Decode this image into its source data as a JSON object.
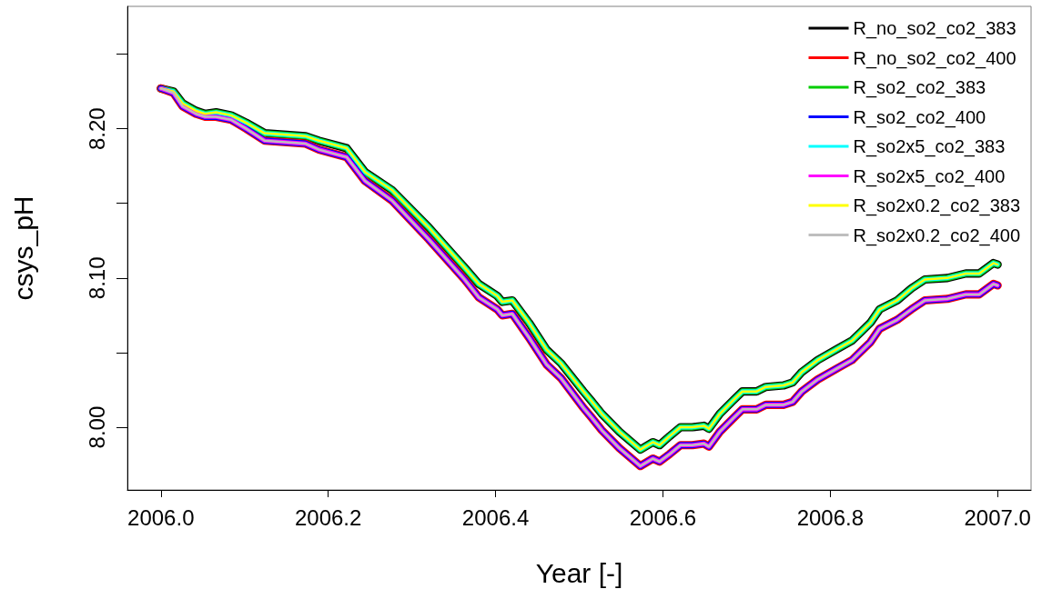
{
  "chart_data": {
    "type": "line",
    "xlabel": "Year [-]",
    "ylabel": "csys_pH",
    "xlim": [
      2005.96,
      2007.04
    ],
    "xticks": [
      {
        "value": 2006,
        "label": "2006.0"
      },
      {
        "value": 2006.2,
        "label": "2006.2"
      },
      {
        "value": 2006.4,
        "label": "2006.4"
      },
      {
        "value": 2006.6,
        "label": "2006.6"
      },
      {
        "value": 2006.8,
        "label": "2006.8"
      },
      {
        "value": 2007,
        "label": "2007.0"
      }
    ],
    "ylim": [
      7.958,
      8.282
    ],
    "yticks": [
      {
        "value": 8,
        "label": "8.00"
      },
      {
        "value": 8.05,
        "label": null
      },
      {
        "value": 8.1,
        "label": "8.10"
      },
      {
        "value": 8.15,
        "label": null
      },
      {
        "value": 8.2,
        "label": "8.20"
      },
      {
        "value": 8.25,
        "label": null
      }
    ],
    "grid": false,
    "legend": "top right",
    "marker": "none",
    "line_style": "solid",
    "x": [
      2006.0,
      2006.015,
      2006.026,
      2006.042,
      2006.053,
      2006.066,
      2006.084,
      2006.102,
      2006.124,
      2006.173,
      2006.189,
      2006.222,
      2006.244,
      2006.276,
      2006.32,
      2006.363,
      2006.38,
      2006.402,
      2006.408,
      2006.42,
      2006.44,
      2006.461,
      2006.478,
      2006.505,
      2006.514,
      2006.527,
      2006.548,
      2006.573,
      2006.588,
      2006.596,
      2006.608,
      2006.621,
      2006.635,
      2006.649,
      2006.655,
      2006.668,
      2006.684,
      2006.695,
      2006.712,
      2006.723,
      2006.744,
      2006.755,
      2006.766,
      2006.785,
      2006.81,
      2006.826,
      2006.837,
      2006.848,
      2006.859,
      2006.88,
      2006.897,
      2006.913,
      2006.94,
      2006.962,
      2006.978,
      2006.995,
      2007.0
    ],
    "series": [
      {
        "name": "R_no_so2_co2_383",
        "color": "#000000",
        "values": [
          8.227,
          8.225,
          8.217,
          8.212,
          8.21,
          8.211,
          8.209,
          8.204,
          8.197,
          8.195,
          8.192,
          8.187,
          8.171,
          8.159,
          8.134,
          8.107,
          8.096,
          8.088,
          8.084,
          8.085,
          8.07,
          8.052,
          8.043,
          8.024,
          8.018,
          8.009,
          7.997,
          7.985,
          7.99,
          7.988,
          7.994,
          8.0,
          8.0,
          8.001,
          7.999,
          8.009,
          8.018,
          8.024,
          8.024,
          8.027,
          8.028,
          8.03,
          8.037,
          8.045,
          8.053,
          8.058,
          8.064,
          8.07,
          8.079,
          8.085,
          8.093,
          8.099,
          8.1,
          8.103,
          8.103,
          8.11,
          8.109
        ]
      },
      {
        "name": "R_no_so2_co2_400",
        "color": "#ff0000",
        "values": [
          8.227,
          8.224,
          8.215,
          8.21,
          8.208,
          8.208,
          8.206,
          8.2,
          8.192,
          8.19,
          8.186,
          8.181,
          8.165,
          8.152,
          8.126,
          8.099,
          8.087,
          8.079,
          8.075,
          8.076,
          8.06,
          8.042,
          8.033,
          8.013,
          8.007,
          7.998,
          7.986,
          7.974,
          7.979,
          7.977,
          7.982,
          7.988,
          7.988,
          7.989,
          7.987,
          7.997,
          8.006,
          8.012,
          8.012,
          8.015,
          8.015,
          8.017,
          8.024,
          8.032,
          8.04,
          8.045,
          8.051,
          8.057,
          8.066,
          8.072,
          8.079,
          8.085,
          8.086,
          8.089,
          8.089,
          8.096,
          8.095
        ]
      },
      {
        "name": "R_so2_co2_383",
        "color": "#00cd00",
        "values": [
          8.227,
          8.225,
          8.217,
          8.212,
          8.21,
          8.211,
          8.209,
          8.204,
          8.197,
          8.195,
          8.192,
          8.187,
          8.171,
          8.159,
          8.134,
          8.107,
          8.096,
          8.088,
          8.084,
          8.085,
          8.07,
          8.052,
          8.043,
          8.024,
          8.018,
          8.009,
          7.997,
          7.985,
          7.99,
          7.988,
          7.994,
          8.0,
          8.0,
          8.001,
          7.999,
          8.009,
          8.018,
          8.024,
          8.024,
          8.027,
          8.028,
          8.03,
          8.037,
          8.045,
          8.053,
          8.058,
          8.064,
          8.07,
          8.079,
          8.085,
          8.093,
          8.099,
          8.1,
          8.103,
          8.103,
          8.11,
          8.109
        ]
      },
      {
        "name": "R_so2_co2_400",
        "color": "#0000ff",
        "values": [
          8.227,
          8.224,
          8.215,
          8.21,
          8.208,
          8.208,
          8.206,
          8.2,
          8.192,
          8.19,
          8.186,
          8.181,
          8.165,
          8.152,
          8.126,
          8.099,
          8.087,
          8.079,
          8.075,
          8.076,
          8.06,
          8.042,
          8.033,
          8.013,
          8.007,
          7.998,
          7.986,
          7.974,
          7.979,
          7.977,
          7.982,
          7.988,
          7.988,
          7.989,
          7.987,
          7.997,
          8.006,
          8.012,
          8.012,
          8.015,
          8.015,
          8.017,
          8.024,
          8.032,
          8.04,
          8.045,
          8.051,
          8.057,
          8.066,
          8.072,
          8.079,
          8.085,
          8.086,
          8.089,
          8.089,
          8.096,
          8.095
        ]
      },
      {
        "name": "R_so2x5_co2_383",
        "color": "#00ffff",
        "values": [
          8.227,
          8.225,
          8.217,
          8.212,
          8.21,
          8.211,
          8.209,
          8.204,
          8.197,
          8.195,
          8.192,
          8.187,
          8.171,
          8.159,
          8.134,
          8.107,
          8.096,
          8.088,
          8.084,
          8.085,
          8.07,
          8.052,
          8.043,
          8.024,
          8.018,
          8.009,
          7.997,
          7.985,
          7.99,
          7.988,
          7.994,
          8.0,
          8.0,
          8.001,
          7.999,
          8.009,
          8.018,
          8.024,
          8.024,
          8.027,
          8.028,
          8.03,
          8.037,
          8.045,
          8.053,
          8.058,
          8.064,
          8.07,
          8.079,
          8.085,
          8.093,
          8.099,
          8.1,
          8.103,
          8.103,
          8.11,
          8.109
        ]
      },
      {
        "name": "R_so2x5_co2_400",
        "color": "#ff00ff",
        "values": [
          8.227,
          8.224,
          8.215,
          8.21,
          8.208,
          8.208,
          8.206,
          8.2,
          8.192,
          8.19,
          8.186,
          8.181,
          8.165,
          8.152,
          8.126,
          8.099,
          8.087,
          8.079,
          8.075,
          8.076,
          8.06,
          8.042,
          8.033,
          8.013,
          8.007,
          7.998,
          7.986,
          7.974,
          7.979,
          7.977,
          7.982,
          7.988,
          7.988,
          7.989,
          7.987,
          7.997,
          8.006,
          8.012,
          8.012,
          8.015,
          8.015,
          8.017,
          8.024,
          8.032,
          8.04,
          8.045,
          8.051,
          8.057,
          8.066,
          8.072,
          8.079,
          8.085,
          8.086,
          8.089,
          8.089,
          8.096,
          8.095
        ]
      },
      {
        "name": "R_so2x0.2_co2_383",
        "color": "#ffff00",
        "values": [
          8.227,
          8.225,
          8.217,
          8.212,
          8.21,
          8.211,
          8.209,
          8.204,
          8.197,
          8.195,
          8.192,
          8.187,
          8.171,
          8.159,
          8.134,
          8.107,
          8.096,
          8.088,
          8.084,
          8.085,
          8.07,
          8.052,
          8.043,
          8.024,
          8.018,
          8.009,
          7.997,
          7.985,
          7.99,
          7.988,
          7.994,
          8.0,
          8.0,
          8.001,
          7.999,
          8.009,
          8.018,
          8.024,
          8.024,
          8.027,
          8.028,
          8.03,
          8.037,
          8.045,
          8.053,
          8.058,
          8.064,
          8.07,
          8.079,
          8.085,
          8.093,
          8.099,
          8.1,
          8.103,
          8.103,
          8.11,
          8.109
        ]
      },
      {
        "name": "R_so2x0.2_co2_400",
        "color": "#bebebe",
        "values": [
          8.227,
          8.224,
          8.215,
          8.21,
          8.208,
          8.208,
          8.206,
          8.2,
          8.192,
          8.19,
          8.186,
          8.181,
          8.165,
          8.152,
          8.126,
          8.099,
          8.087,
          8.079,
          8.075,
          8.076,
          8.06,
          8.042,
          8.033,
          8.013,
          8.007,
          7.998,
          7.986,
          7.974,
          7.979,
          7.977,
          7.982,
          7.988,
          7.988,
          7.989,
          7.987,
          7.997,
          8.006,
          8.012,
          8.012,
          8.015,
          8.015,
          8.017,
          8.024,
          8.032,
          8.04,
          8.045,
          8.051,
          8.057,
          8.066,
          8.072,
          8.079,
          8.085,
          8.086,
          8.089,
          8.089,
          8.096,
          8.095
        ]
      }
    ]
  }
}
